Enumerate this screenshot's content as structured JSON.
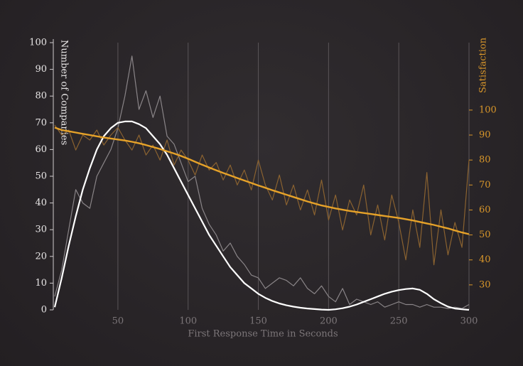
{
  "chart_data": {
    "type": "line",
    "xlabel": "First Response Time in Seconds",
    "ylabel": "Number of Companies",
    "y2label": "Satisfaction",
    "xlim": [
      4,
      300
    ],
    "xticks": [
      50,
      100,
      150,
      200,
      250,
      300
    ],
    "ylim": [
      0,
      100
    ],
    "yticks": [
      0,
      10,
      20,
      30,
      40,
      50,
      60,
      70,
      80,
      90,
      100
    ],
    "y2lim": [
      20,
      127
    ],
    "y2ticks": [
      30,
      40,
      50,
      60,
      70,
      80,
      90,
      100
    ],
    "grid": true,
    "x": [
      5,
      10,
      15,
      20,
      25,
      30,
      35,
      40,
      45,
      50,
      55,
      60,
      65,
      70,
      75,
      80,
      85,
      90,
      95,
      100,
      105,
      110,
      115,
      120,
      125,
      130,
      135,
      140,
      145,
      150,
      155,
      160,
      165,
      170,
      175,
      180,
      185,
      190,
      195,
      200,
      205,
      210,
      215,
      220,
      225,
      230,
      235,
      240,
      245,
      250,
      255,
      260,
      265,
      270,
      275,
      280,
      285,
      290,
      295,
      300
    ],
    "series": [
      {
        "color": "#8a8588",
        "width": 1.2,
        "values": [
          5,
          15,
          30,
          45,
          40,
          38,
          50,
          55,
          60,
          68,
          80,
          95,
          75,
          82,
          72,
          80,
          65,
          62,
          55,
          48,
          50,
          38,
          32,
          28,
          22,
          25,
          20,
          17,
          13,
          12,
          8,
          10,
          12,
          11,
          9,
          12,
          8,
          6,
          9,
          5,
          3,
          8,
          2,
          4,
          3,
          2,
          3,
          1,
          2,
          3,
          2,
          2,
          1,
          2,
          1,
          1,
          0.5,
          1,
          0.5,
          2
        ]
      },
      {
        "color": "#8a6230",
        "width": 1.2,
        "axis": "y2",
        "values": [
          94,
          90,
          92,
          84,
          90,
          88,
          92,
          86,
          90,
          93,
          88,
          84,
          90,
          82,
          86,
          80,
          88,
          78,
          84,
          80,
          74,
          82,
          76,
          79,
          72,
          78,
          70,
          76,
          68,
          80,
          70,
          64,
          74,
          62,
          70,
          60,
          68,
          58,
          72,
          56,
          66,
          52,
          64,
          58,
          70,
          50,
          62,
          48,
          66,
          55,
          40,
          60,
          45,
          75,
          38,
          60,
          42,
          55,
          45,
          80
        ]
      },
      {
        "color": "#ffffff",
        "width": 2.2,
        "values": [
          1,
          12,
          24,
          35,
          45,
          53,
          60,
          65,
          68,
          70,
          70.5,
          70.5,
          69.5,
          68,
          65,
          62,
          58,
          53,
          48,
          43,
          38,
          33,
          28,
          24,
          20,
          16,
          13,
          10,
          8,
          6,
          4.5,
          3.3,
          2.4,
          1.7,
          1.2,
          0.8,
          0.5,
          0.3,
          0.1,
          0,
          0.2,
          0.6,
          1.2,
          2,
          3,
          4,
          5,
          6,
          6.8,
          7.4,
          7.8,
          8,
          7.5,
          6,
          4,
          2.5,
          1.2,
          0.5,
          0.2,
          0
        ]
      },
      {
        "color": "#e6a229",
        "width": 2.4,
        "axis": "y2",
        "values": [
          93,
          92,
          91.5,
          91,
          90.5,
          90,
          89.5,
          89,
          88.6,
          88.2,
          87.8,
          87.3,
          86.7,
          86,
          85.2,
          84.4,
          83.5,
          82.6,
          81.6,
          80.5,
          79.3,
          78.1,
          77,
          75.9,
          74.8,
          73.8,
          72.8,
          71.8,
          70.8,
          69.8,
          68.9,
          67.9,
          67,
          66.1,
          65.2,
          64.3,
          63.4,
          62.6,
          61.8,
          61.2,
          60.6,
          60.1,
          59.6,
          59.2,
          58.8,
          58.4,
          58,
          57.6,
          57.2,
          56.8,
          56.3,
          55.8,
          55.2,
          54.6,
          54,
          53.3,
          52.6,
          51.8,
          51,
          50.3
        ]
      }
    ]
  }
}
